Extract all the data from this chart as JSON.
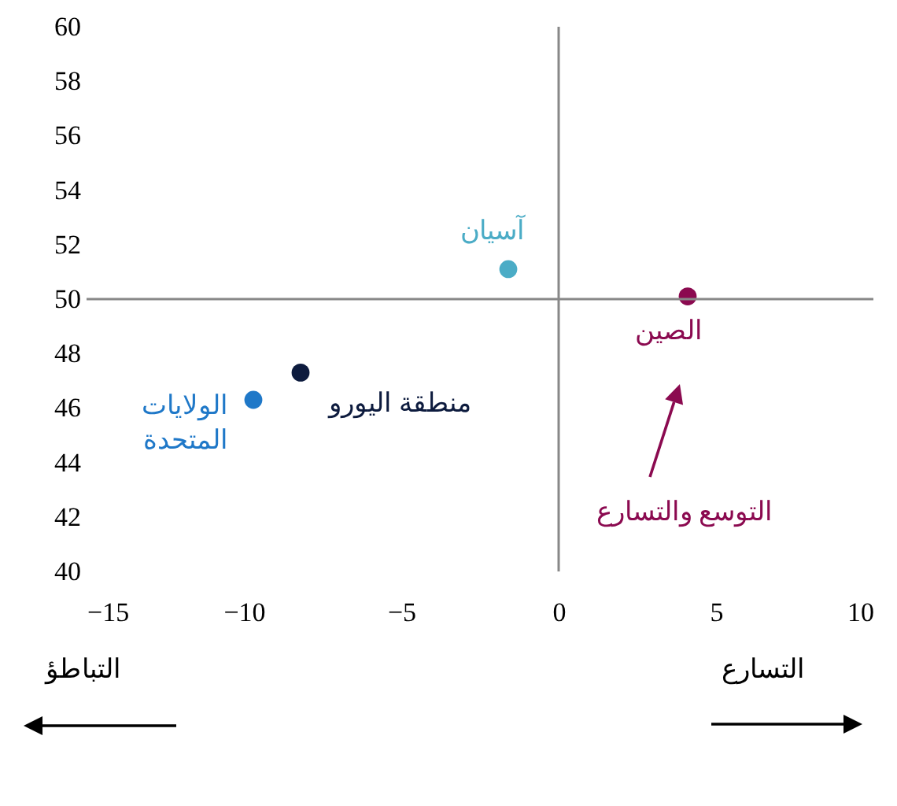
{
  "chart_data": {
    "type": "scatter",
    "series": [
      {
        "name": "آسيان",
        "color": "#4bacc6",
        "x": [
          -1.6
        ],
        "values": [
          51.1
        ]
      },
      {
        "name": "الصين",
        "color": "#8b0a50",
        "x": [
          4.1
        ],
        "values": [
          50.1
        ]
      },
      {
        "name": "منطقة اليورو",
        "color": "#0d1b3e",
        "x": [
          -8.2
        ],
        "values": [
          47.3
        ]
      },
      {
        "name": "الولايات\nالمتحدة",
        "color": "#1f78c8",
        "x": [
          -9.7
        ],
        "values": [
          46.3
        ]
      }
    ],
    "xlim": [
      -15,
      10
    ],
    "xticks": [
      -15,
      -10,
      -5,
      0,
      5,
      10
    ],
    "ylim": [
      40,
      60
    ],
    "yticks": [
      40,
      42,
      44,
      46,
      48,
      50,
      52,
      54,
      56,
      58,
      60
    ],
    "ref_lines": [
      {
        "axis": "x",
        "value": 0,
        "color": "#888888"
      },
      {
        "axis": "y",
        "value": 50,
        "color": "#888888"
      }
    ],
    "annotations": [
      "التوسع والتسارع",
      "التباطؤ",
      "التسارع"
    ],
    "grid": false,
    "marker": "circle"
  }
}
